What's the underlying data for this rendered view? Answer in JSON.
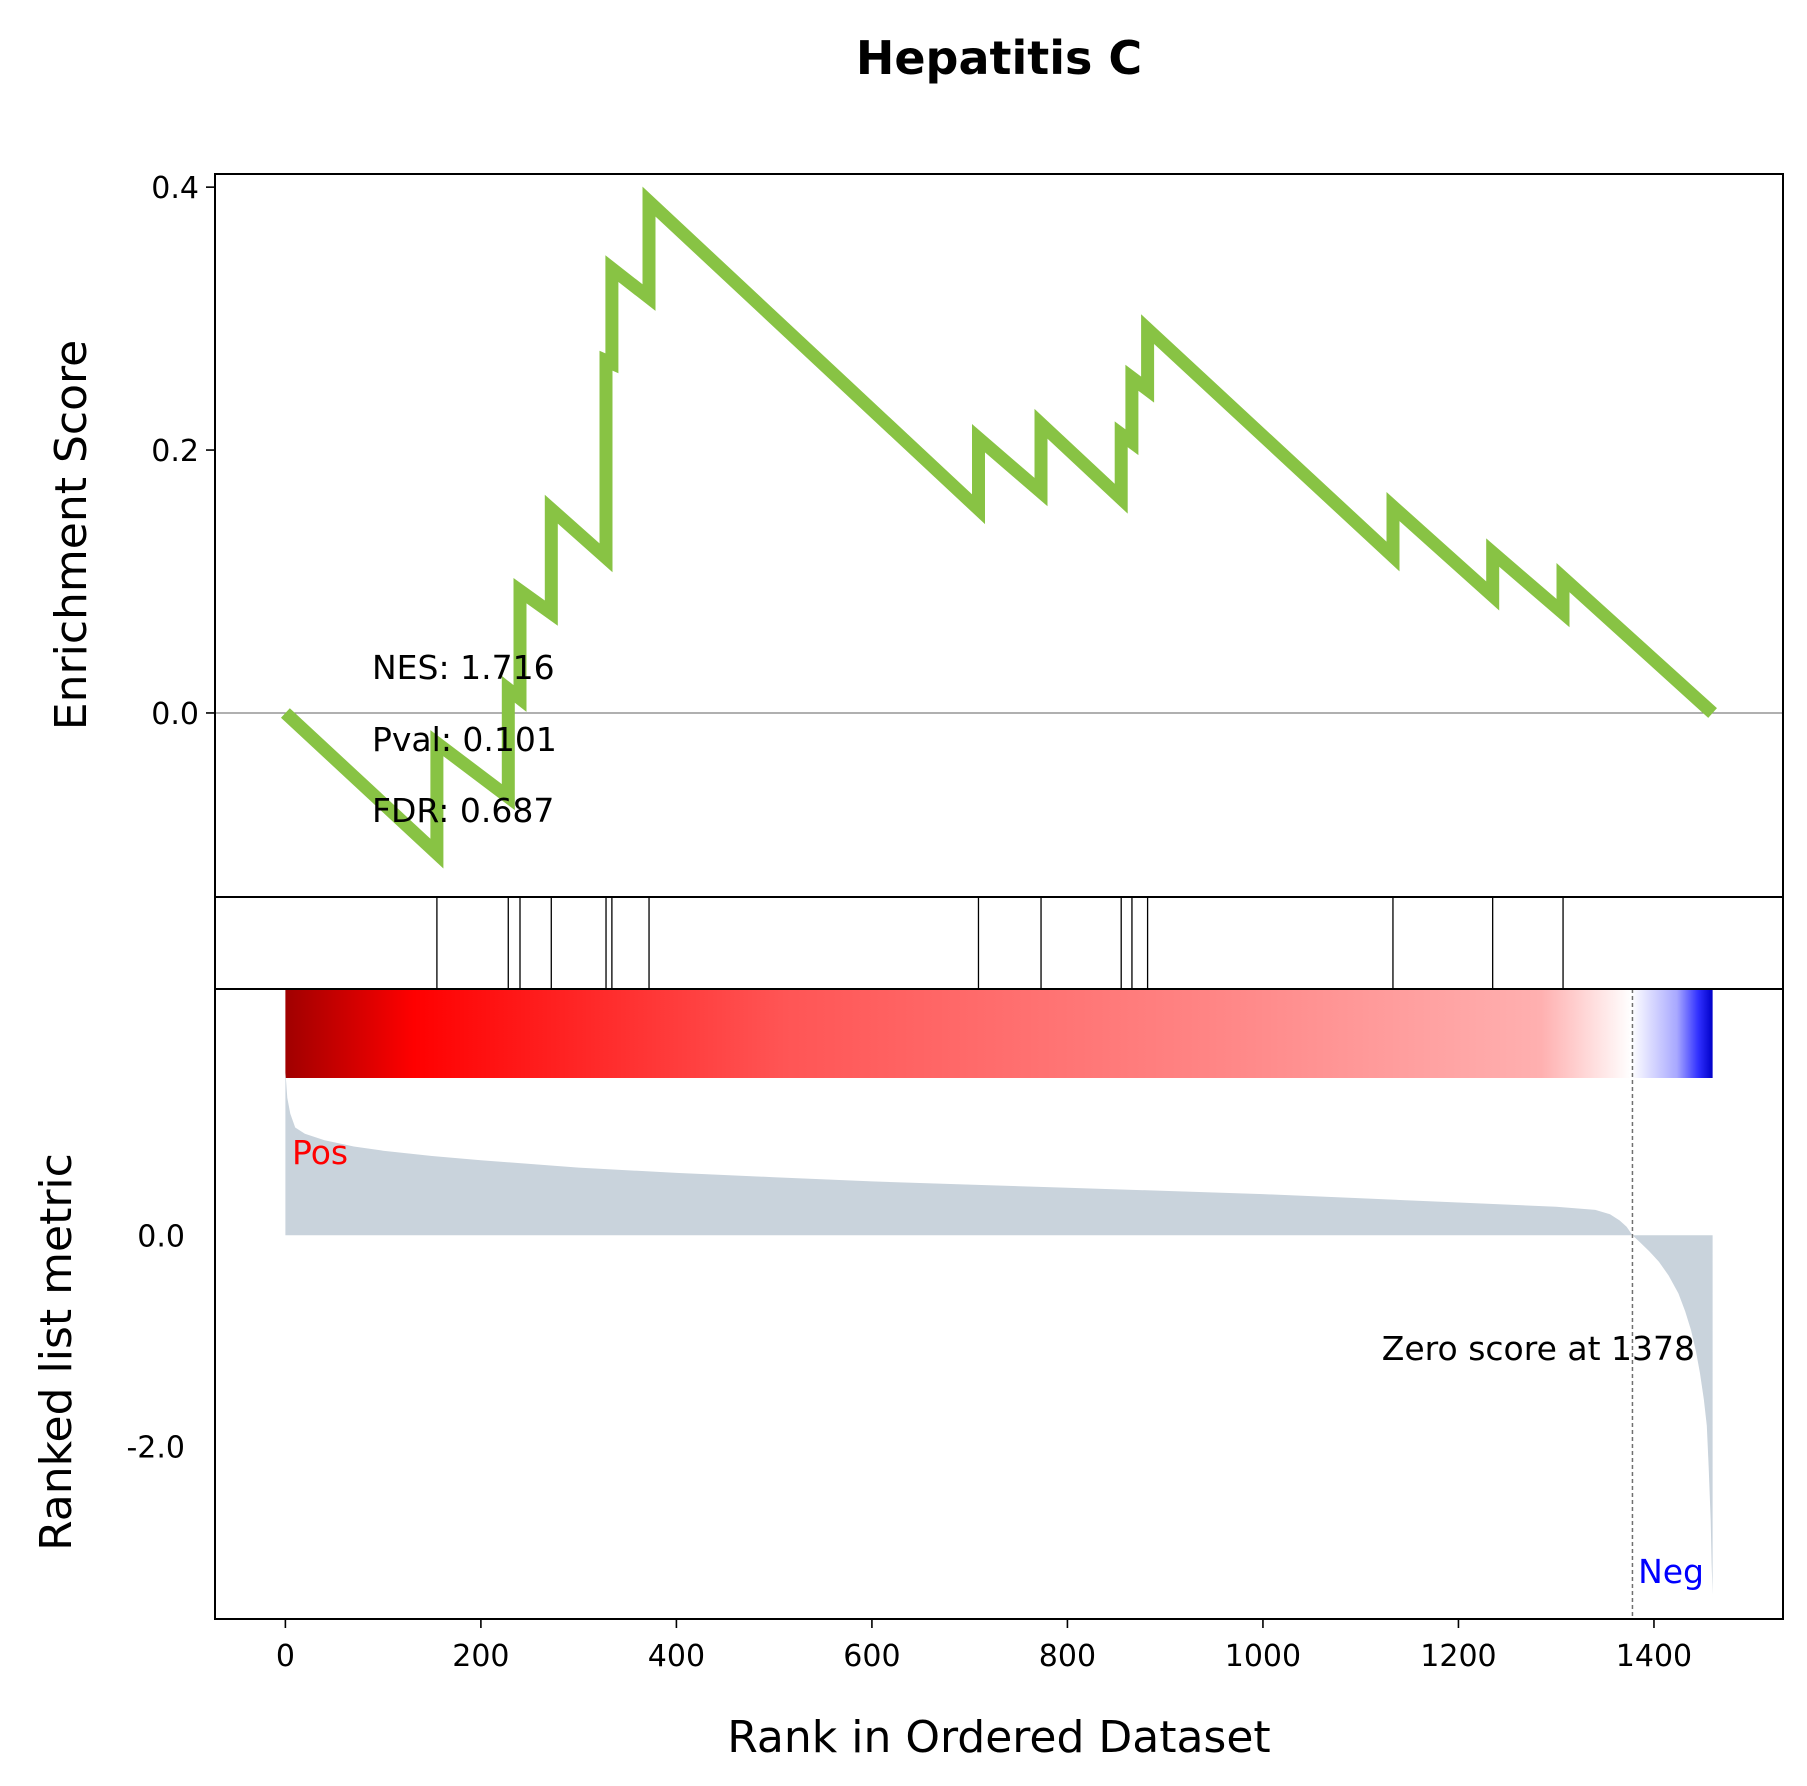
{
  "chart_data": {
    "type": "line",
    "title": "Hepatitis C",
    "xlabel": "Rank in Ordered Dataset",
    "xlim": [
      -72,
      1532
    ],
    "xticks": [
      0,
      200,
      400,
      600,
      800,
      1000,
      1200,
      1400
    ],
    "colors": {
      "es_line": "#88c344",
      "metric_fill": "#c9d3dc",
      "pos_label": "#ff0000",
      "neg_label": "#0000ff",
      "zero_line": "#808080"
    },
    "enrichment_panel": {
      "ylabel": "Enrichment Score",
      "ylim": [
        -0.14,
        0.41
      ],
      "yticks": [
        0.0,
        0.2,
        0.4
      ],
      "ytick_labels": [
        "0.0",
        "0.2",
        "0.4"
      ],
      "stats": [
        "NES: 1.716",
        "Pval: 0.101",
        "FDR: 0.687"
      ],
      "series": [
        {
          "x": [
            0,
            155,
            155,
            228,
            228,
            240,
            240,
            272,
            272,
            328,
            328,
            334,
            334,
            372,
            372,
            709,
            709,
            773,
            773,
            855,
            855,
            866,
            866,
            882,
            882,
            1133,
            1133,
            1235,
            1235,
            1307,
            1307,
            1460
          ],
          "y": [
            0.0,
            -0.107,
            -0.023,
            -0.064,
            0.018,
            0.011,
            0.093,
            0.076,
            0.155,
            0.118,
            0.268,
            0.266,
            0.338,
            0.316,
            0.389,
            0.155,
            0.209,
            0.168,
            0.22,
            0.163,
            0.212,
            0.206,
            0.255,
            0.246,
            0.292,
            0.119,
            0.157,
            0.089,
            0.122,
            0.076,
            0.103,
            0.0
          ]
        }
      ]
    },
    "hits_panel": {
      "hit_positions": [
        155,
        228,
        240,
        272,
        328,
        334,
        372,
        709,
        773,
        855,
        866,
        882,
        1133,
        1235,
        1307
      ]
    },
    "ranked_metric_panel": {
      "ylabel": "Ranked list metric",
      "ylim": [
        -3.63,
        2.33
      ],
      "yticks": [
        0.0,
        -2.0
      ],
      "ytick_labels": [
        "0.0",
        "-2.0"
      ],
      "pos_label": "Pos",
      "neg_label": "Neg",
      "zero_cross_rank": 1378,
      "zero_cross_text": "Zero score at 1378",
      "metric_profile": {
        "x": [
          0,
          2,
          5,
          10,
          20,
          40,
          70,
          100,
          150,
          200,
          300,
          400,
          500,
          600,
          700,
          800,
          900,
          1000,
          1100,
          1200,
          1300,
          1340,
          1355,
          1365,
          1372,
          1378,
          1378,
          1385,
          1395,
          1405,
          1415,
          1425,
          1432,
          1438,
          1443,
          1447,
          1451,
          1454,
          1456,
          1458,
          1459,
          1460
        ],
        "y": [
          1.55,
          1.3,
          1.15,
          1.02,
          0.96,
          0.9,
          0.84,
          0.8,
          0.75,
          0.71,
          0.64,
          0.59,
          0.55,
          0.51,
          0.48,
          0.45,
          0.42,
          0.39,
          0.35,
          0.31,
          0.27,
          0.24,
          0.2,
          0.14,
          0.08,
          0.0,
          0.0,
          -0.06,
          -0.15,
          -0.25,
          -0.38,
          -0.55,
          -0.72,
          -0.9,
          -1.1,
          -1.3,
          -1.55,
          -1.8,
          -2.2,
          -2.7,
          -3.1,
          -3.4
        ]
      }
    }
  }
}
